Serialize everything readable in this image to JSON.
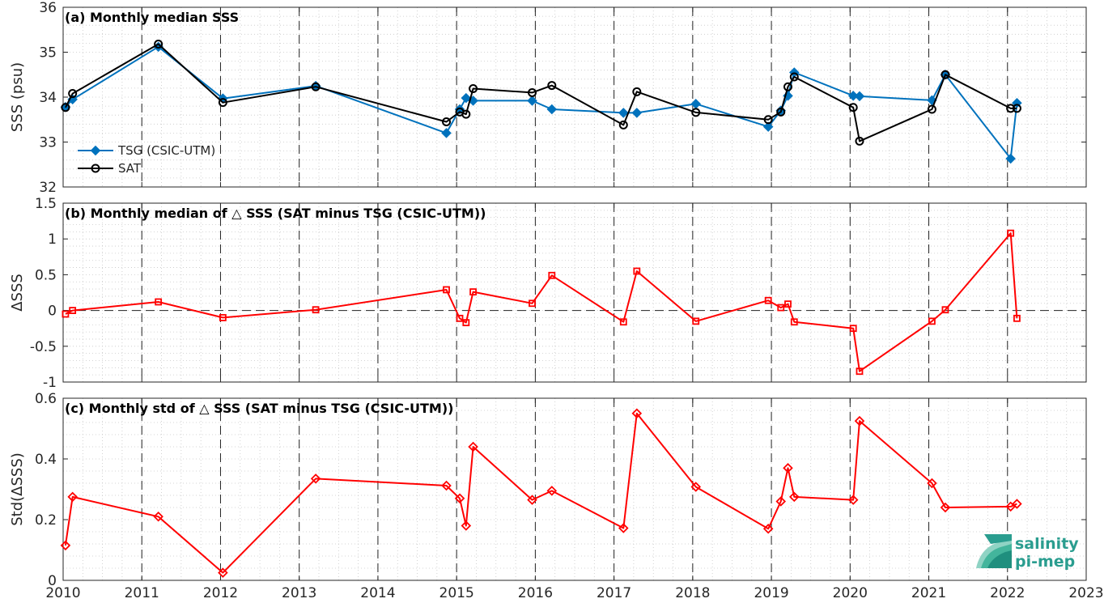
{
  "chart_data": [
    {
      "type": "line",
      "title": "(a) Monthly median SSS",
      "xlabel": "",
      "ylabel": "SSS (psu)",
      "xlim": [
        2010,
        2023
      ],
      "ylim": [
        32,
        36
      ],
      "xticks": [
        "2010",
        "2011",
        "2012",
        "2013",
        "2014",
        "2015",
        "2016",
        "2017",
        "2018",
        "2019",
        "2020",
        "2021",
        "2022",
        "2023"
      ],
      "yticks": [
        "32",
        "33",
        "34",
        "35",
        "36"
      ],
      "grid": "dotted",
      "legend_position": "bottom-left",
      "series": [
        {
          "name": "TSG (CSIC-UTM)",
          "color": "#0072BD",
          "marker": "diamond",
          "x": [
            2010.03,
            2010.12,
            2011.21,
            2012.03,
            2013.21,
            2014.87,
            2015.04,
            2015.12,
            2015.21,
            2015.96,
            2016.21,
            2017.12,
            2017.29,
            2018.04,
            2018.96,
            2019.12,
            2019.21,
            2019.29,
            2020.04,
            2020.12,
            2021.04,
            2021.21,
            2022.04,
            2022.12
          ],
          "y": [
            33.78,
            33.95,
            35.12,
            33.97,
            34.25,
            33.2,
            33.73,
            33.98,
            33.92,
            33.92,
            33.73,
            33.65,
            33.65,
            33.85,
            33.34,
            33.7,
            34.03,
            34.55,
            34.03,
            34.02,
            33.93,
            34.5,
            32.63,
            33.87
          ]
        },
        {
          "name": "SAT",
          "color": "#000000",
          "marker": "circle",
          "x": [
            2010.03,
            2010.12,
            2011.21,
            2012.03,
            2013.21,
            2014.87,
            2015.04,
            2015.12,
            2015.21,
            2015.96,
            2016.21,
            2017.12,
            2017.29,
            2018.04,
            2018.96,
            2019.12,
            2019.21,
            2019.29,
            2020.04,
            2020.12,
            2021.04,
            2021.21,
            2022.04,
            2022.12
          ],
          "y": [
            33.77,
            34.08,
            35.18,
            33.88,
            34.23,
            33.45,
            33.67,
            33.62,
            34.19,
            34.1,
            34.26,
            33.38,
            34.12,
            33.66,
            33.5,
            33.67,
            34.23,
            34.45,
            33.77,
            33.02,
            33.73,
            34.5,
            33.75,
            33.75
          ]
        }
      ]
    },
    {
      "type": "line",
      "title": "(b) Monthly median of △ SSS (SAT minus TSG (CSIC-UTM))",
      "xlabel": "",
      "ylabel": "ΔSSS",
      "xlim": [
        2010,
        2023
      ],
      "ylim": [
        -1,
        1.5
      ],
      "xticks": [
        "2010",
        "2011",
        "2012",
        "2013",
        "2014",
        "2015",
        "2016",
        "2017",
        "2018",
        "2019",
        "2020",
        "2021",
        "2022",
        "2023"
      ],
      "yticks": [
        "-1",
        "-0.5",
        "0",
        "0.5",
        "1",
        "1.5"
      ],
      "grid": "dotted",
      "zero_line": "dashed",
      "series": [
        {
          "name": "",
          "color": "#FF0000",
          "marker": "square",
          "x": [
            2010.03,
            2010.12,
            2011.21,
            2012.03,
            2013.21,
            2014.87,
            2015.04,
            2015.12,
            2015.21,
            2015.96,
            2016.21,
            2017.12,
            2017.29,
            2018.04,
            2018.96,
            2019.12,
            2019.21,
            2019.29,
            2020.04,
            2020.12,
            2021.04,
            2021.21,
            2022.04,
            2022.12
          ],
          "y": [
            -0.05,
            0.0,
            0.12,
            -0.1,
            0.01,
            0.29,
            -0.11,
            -0.17,
            0.26,
            0.1,
            0.49,
            -0.16,
            0.55,
            -0.15,
            0.14,
            0.04,
            0.09,
            -0.16,
            -0.25,
            -0.85,
            -0.15,
            0.01,
            1.08,
            -0.11
          ]
        }
      ]
    },
    {
      "type": "line",
      "title": "(c) Monthly std of △ SSS (SAT minus TSG (CSIC-UTM))",
      "xlabel": "",
      "ylabel": "Std(ΔSSS)",
      "xlim": [
        2010,
        2023
      ],
      "ylim": [
        0,
        0.6
      ],
      "xticks": [
        "2010",
        "2011",
        "2012",
        "2013",
        "2014",
        "2015",
        "2016",
        "2017",
        "2018",
        "2019",
        "2020",
        "2021",
        "2022",
        "2023"
      ],
      "yticks": [
        "0",
        "0.2",
        "0.4",
        "0.6"
      ],
      "grid": "dotted",
      "series": [
        {
          "name": "",
          "color": "#FF0000",
          "marker": "diamond",
          "x": [
            2010.03,
            2010.12,
            2011.21,
            2012.03,
            2013.21,
            2014.87,
            2015.04,
            2015.12,
            2015.21,
            2015.96,
            2016.21,
            2017.12,
            2017.29,
            2018.04,
            2018.96,
            2019.12,
            2019.21,
            2019.29,
            2020.04,
            2020.12,
            2021.04,
            2021.21,
            2022.04,
            2022.12
          ],
          "y": [
            0.115,
            0.275,
            0.21,
            0.025,
            0.335,
            0.312,
            0.27,
            0.18,
            0.44,
            0.265,
            0.295,
            0.172,
            0.55,
            0.308,
            0.17,
            0.26,
            0.37,
            0.275,
            0.265,
            0.525,
            0.32,
            0.24,
            0.243,
            0.252
          ]
        }
      ]
    }
  ],
  "logo": {
    "line1": "salinity",
    "line2": "pi-mep"
  }
}
